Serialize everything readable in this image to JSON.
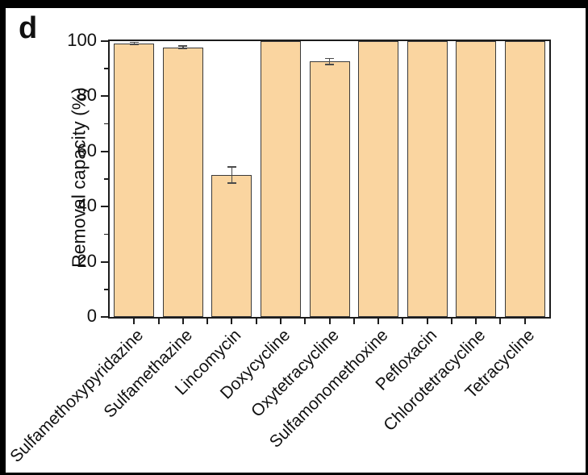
{
  "figure_label": "d",
  "chart_data": {
    "type": "bar",
    "title": "",
    "xlabel": "",
    "ylabel": "Removal capacity (%)",
    "ylim": [
      0,
      100
    ],
    "yticks_major": [
      0,
      20,
      40,
      60,
      80,
      100
    ],
    "yticks_minor": [
      10,
      30,
      50,
      70,
      90
    ],
    "grid": false,
    "legend": false,
    "categories": [
      "Sulfamethoxypyridazine",
      "Sulfamethazine",
      "Lincomycin",
      "Doxycycline",
      "Oxytetracycline",
      "Sulfamonomethoxine",
      "Pefloxacin",
      "Chlorotetracycline",
      "Tetracycline"
    ],
    "values": [
      99.2,
      97.8,
      51.5,
      100,
      92.6,
      100,
      100,
      100,
      100
    ],
    "errors": [
      0.5,
      0.5,
      3,
      0,
      1.2,
      0,
      0,
      0,
      0
    ],
    "bar_fill": "#FAD5A0",
    "bar_border": "#3a3a3a",
    "error_color": "#4a4a4a",
    "axis_color": "#1c1c1c",
    "plot_bg": "#ffffff",
    "frame_color": "#000000"
  }
}
